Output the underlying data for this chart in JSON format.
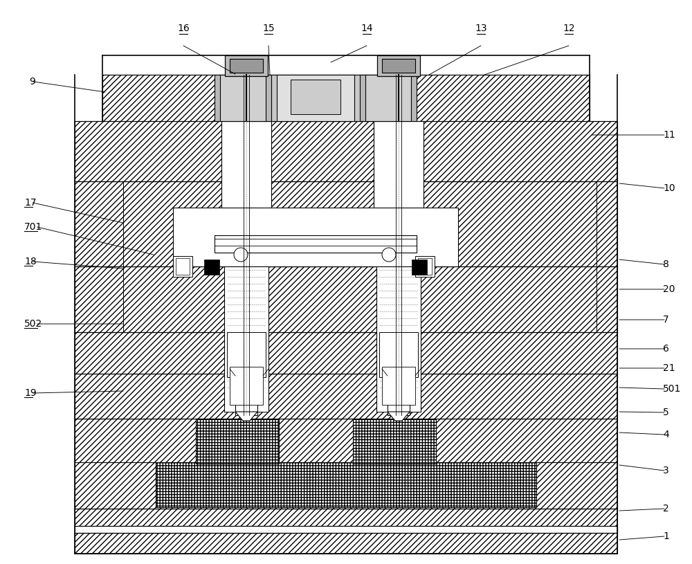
{
  "bg_color": "#ffffff",
  "lc": "#000000",
  "figsize": [
    10,
    8.15
  ],
  "dpi": 100,
  "labels_right": [
    [
      "1",
      958,
      775
    ],
    [
      "2",
      958,
      735
    ],
    [
      "3",
      958,
      680
    ],
    [
      "4",
      958,
      628
    ],
    [
      "5",
      958,
      596
    ],
    [
      "501",
      958,
      562
    ],
    [
      "21",
      958,
      532
    ],
    [
      "6",
      958,
      504
    ],
    [
      "7",
      958,
      462
    ],
    [
      "20",
      958,
      418
    ],
    [
      "8",
      958,
      382
    ],
    [
      "10",
      958,
      272
    ],
    [
      "11",
      958,
      195
    ]
  ],
  "labels_left": [
    [
      "9",
      42,
      118
    ],
    [
      "17",
      35,
      293
    ],
    [
      "701",
      35,
      328
    ],
    [
      "18",
      35,
      378
    ],
    [
      "502",
      35,
      468
    ],
    [
      "19",
      35,
      568
    ]
  ],
  "labels_top": [
    [
      "16",
      265,
      48
    ],
    [
      "15",
      388,
      48
    ],
    [
      "14",
      530,
      48
    ],
    [
      "13",
      695,
      48
    ],
    [
      "12",
      822,
      48
    ]
  ],
  "underlined_labels": [
    "16",
    "15",
    "14",
    "13",
    "12",
    "18",
    "502",
    "19",
    "17",
    "701"
  ],
  "arrows_right": [
    [
      "1",
      958,
      775,
      895,
      780
    ],
    [
      "2",
      958,
      735,
      895,
      738
    ],
    [
      "3",
      958,
      680,
      895,
      672
    ],
    [
      "4",
      958,
      628,
      895,
      625
    ],
    [
      "5",
      958,
      596,
      895,
      595
    ],
    [
      "501",
      958,
      562,
      895,
      560
    ],
    [
      "21",
      958,
      532,
      895,
      532
    ],
    [
      "6",
      958,
      504,
      895,
      504
    ],
    [
      "7",
      958,
      462,
      895,
      462
    ],
    [
      "20",
      958,
      418,
      895,
      418
    ],
    [
      "8",
      958,
      382,
      895,
      375
    ],
    [
      "10",
      958,
      272,
      895,
      265
    ],
    [
      "11",
      958,
      195,
      855,
      195
    ]
  ],
  "arrows_left": [
    [
      "9",
      42,
      118,
      152,
      133
    ],
    [
      "17",
      35,
      293,
      178,
      322
    ],
    [
      "701",
      35,
      328,
      222,
      368
    ],
    [
      "18",
      35,
      378,
      178,
      388
    ],
    [
      "502",
      35,
      468,
      178,
      468
    ],
    [
      "19",
      35,
      568,
      178,
      565
    ]
  ],
  "arrows_top": [
    [
      "16",
      265,
      62,
      340,
      107
    ],
    [
      "15",
      388,
      62,
      390,
      108
    ],
    [
      "14",
      530,
      62,
      478,
      90
    ],
    [
      "13",
      695,
      62,
      620,
      108
    ],
    [
      "12",
      822,
      62,
      700,
      108
    ]
  ]
}
